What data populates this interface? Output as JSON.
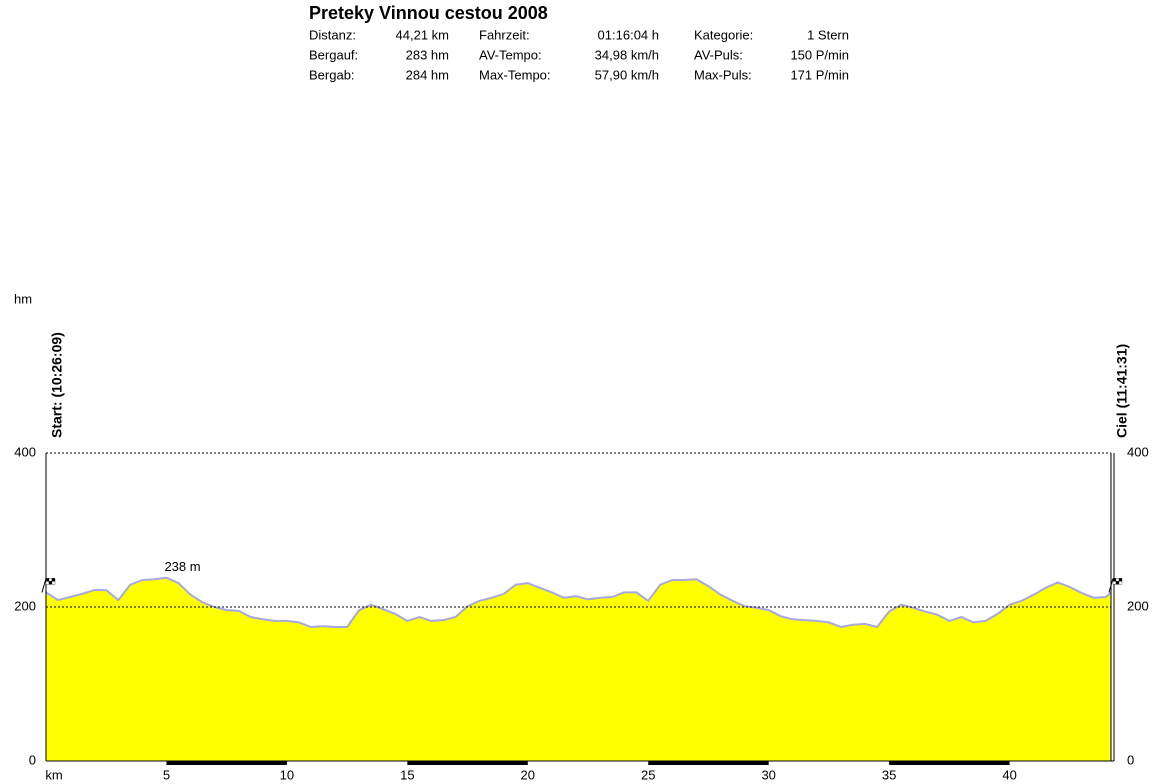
{
  "chart_data": {
    "type": "area",
    "title": "Preteky Vinnou cestou 2008",
    "stats": [
      [
        "Distanz:",
        "44,21 km",
        "Fahrzeit:",
        "01:16:04 h",
        "Kategorie:",
        "1 Stern"
      ],
      [
        "Bergauf:",
        "283 hm",
        "AV-Tempo:",
        "34,98 km/h",
        "AV-Puls:",
        "150 P/min"
      ],
      [
        "Bergab:",
        "284 hm",
        "Max-Tempo:",
        "57,90 km/h",
        "Max-Puls:",
        "171 P/min"
      ]
    ],
    "ylabel": "hm",
    "xlabel": "km",
    "start_label": "Start: (10:26:09)",
    "finish_label": "Ciel (11:41:31)",
    "max_annotation": {
      "x": 5,
      "value": 238,
      "label": "238 m",
      "color": "#cc0000"
    },
    "fill_color": "#ffff00",
    "line_color": "#a8a8e0",
    "grid": true,
    "xlim": [
      0,
      44.21
    ],
    "ylim": [
      0,
      400
    ],
    "xticks": [
      5,
      10,
      15,
      20,
      25,
      30,
      35,
      40
    ],
    "yticks": [
      0,
      200,
      400
    ],
    "x": [
      0,
      0.5,
      1,
      1.5,
      2,
      2.5,
      3,
      3.5,
      4,
      4.5,
      5,
      5.5,
      6,
      6.5,
      7,
      7.5,
      8,
      8.5,
      9,
      9.5,
      10,
      10.5,
      11,
      11.5,
      12,
      12.5,
      13,
      13.5,
      14,
      14.5,
      15,
      15.5,
      16,
      16.5,
      17,
      17.5,
      18,
      18.5,
      19,
      19.5,
      20,
      20.5,
      21,
      21.5,
      22,
      22.5,
      23,
      23.5,
      24,
      24.5,
      25,
      25.5,
      26,
      26.5,
      27,
      27.5,
      28,
      28.5,
      29,
      29.5,
      30,
      30.5,
      31,
      31.5,
      32,
      32.5,
      33,
      33.5,
      34,
      34.5,
      35,
      35.5,
      36,
      36.5,
      37,
      37.5,
      38,
      38.5,
      39,
      39.5,
      40,
      40.5,
      41,
      41.5,
      42,
      42.5,
      43,
      43.5,
      44,
      44.21
    ],
    "values": [
      219,
      209,
      213,
      217,
      222,
      222,
      209,
      229,
      235,
      236,
      238,
      231,
      216,
      206,
      200,
      196,
      195,
      187,
      184,
      182,
      182,
      180,
      174,
      175,
      174,
      174,
      196,
      203,
      197,
      191,
      182,
      187,
      182,
      183,
      187,
      201,
      208,
      212,
      217,
      229,
      231,
      225,
      219,
      212,
      214,
      210,
      212,
      213,
      219,
      219,
      208,
      229,
      235,
      235,
      236,
      227,
      216,
      208,
      201,
      199,
      196,
      188,
      184,
      183,
      182,
      180,
      174,
      177,
      178,
      174,
      194,
      203,
      199,
      194,
      190,
      182,
      187,
      180,
      182,
      191,
      203,
      208,
      216,
      225,
      232,
      226,
      218,
      212,
      213,
      219
    ]
  }
}
